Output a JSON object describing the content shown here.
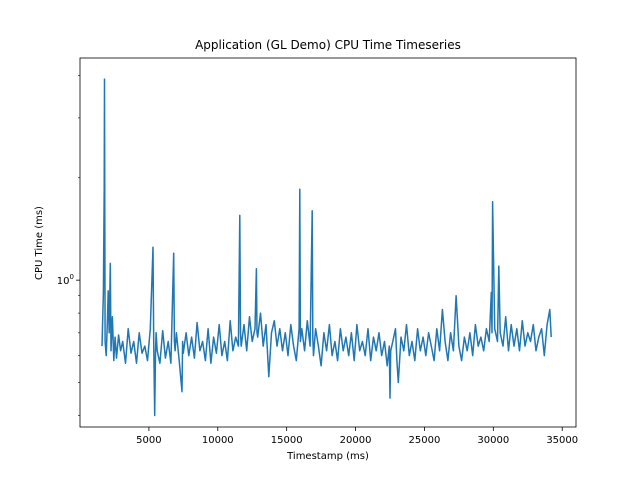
{
  "chart_data": {
    "type": "line",
    "title": "Application (GL Demo) CPU Time Timeseries",
    "xlabel": "Timestamp (ms)",
    "ylabel": "CPU Time (ms)",
    "xlim": [
      0,
      36000
    ],
    "ylim": [
      0.37,
      4.5
    ],
    "yscale": "log",
    "grid": false,
    "x_ticks": [
      {
        "value": 5000,
        "label": "5000"
      },
      {
        "value": 10000,
        "label": "10000"
      },
      {
        "value": 15000,
        "label": "15000"
      },
      {
        "value": 20000,
        "label": "20000"
      },
      {
        "value": 25000,
        "label": "25000"
      },
      {
        "value": 30000,
        "label": "30000"
      },
      {
        "value": 35000,
        "label": "35000"
      }
    ],
    "y_ticks": [
      {
        "value": 1,
        "base": "10",
        "exponent": "0"
      }
    ],
    "series": [
      {
        "color": "#1f77b4",
        "x": [
          1600,
          1700,
          1760,
          1780,
          1820,
          1900,
          1980,
          2050,
          2120,
          2200,
          2250,
          2350,
          2450,
          2550,
          2650,
          2800,
          2950,
          3100,
          3300,
          3500,
          3700,
          3900,
          4100,
          4300,
          4500,
          4700,
          4900,
          5100,
          5300,
          5350,
          5420,
          5480,
          5520,
          5600,
          5800,
          6000,
          6200,
          6400,
          6600,
          6800,
          6850,
          6900,
          7000,
          7200,
          7400,
          7450,
          7500,
          7700,
          7900,
          8100,
          8300,
          8500,
          8700,
          8900,
          9100,
          9300,
          9500,
          9700,
          9900,
          10100,
          10300,
          10500,
          10700,
          10900,
          11100,
          11300,
          11500,
          11600,
          11650,
          11700,
          11900,
          12100,
          12300,
          12500,
          12700,
          12800,
          12850,
          12900,
          13100,
          13300,
          13500,
          13700,
          13900,
          14100,
          14300,
          14500,
          14700,
          14900,
          15100,
          15300,
          15500,
          15700,
          15900,
          15950,
          16000,
          16100,
          16300,
          16500,
          16700,
          16850,
          16900,
          16950,
          17100,
          17300,
          17500,
          17700,
          17900,
          18100,
          18300,
          18500,
          18700,
          18900,
          19100,
          19300,
          19500,
          19700,
          19900,
          20100,
          20300,
          20500,
          20700,
          20900,
          21100,
          21300,
          21500,
          21700,
          21900,
          22100,
          22300,
          22450,
          22500,
          22550,
          22700,
          22900,
          23000,
          23100,
          23300,
          23500,
          23700,
          23900,
          24100,
          24300,
          24500,
          24700,
          24900,
          25100,
          25300,
          25500,
          25700,
          25900,
          26100,
          26300,
          26500,
          26700,
          26900,
          27100,
          27300,
          27500,
          27700,
          27900,
          28100,
          28300,
          28500,
          28700,
          28900,
          29100,
          29300,
          29500,
          29700,
          29850,
          29900,
          29950,
          30100,
          30300,
          30400,
          30500,
          30700,
          30900,
          31100,
          31300,
          31500,
          31700,
          31900,
          32100,
          32300,
          32500,
          32700,
          32900,
          33100,
          33300,
          33500,
          33700,
          33900,
          34100,
          34200
        ],
        "y": [
          0.64,
          0.92,
          1.85,
          3.9,
          0.66,
          0.6,
          0.74,
          0.93,
          0.7,
          1.12,
          0.62,
          0.78,
          0.58,
          0.68,
          0.59,
          0.69,
          0.62,
          0.66,
          0.57,
          0.72,
          0.61,
          0.66,
          0.57,
          0.7,
          0.61,
          0.64,
          0.58,
          0.72,
          1.25,
          0.66,
          0.4,
          0.61,
          0.7,
          0.62,
          0.57,
          0.71,
          0.59,
          0.66,
          0.57,
          1.2,
          0.66,
          0.62,
          0.7,
          0.58,
          0.47,
          0.66,
          0.61,
          0.7,
          0.6,
          0.68,
          0.59,
          0.75,
          0.62,
          0.66,
          0.58,
          0.72,
          0.57,
          0.68,
          0.61,
          0.74,
          0.6,
          0.66,
          0.58,
          0.76,
          0.62,
          0.68,
          0.64,
          1.55,
          0.7,
          0.64,
          0.74,
          0.62,
          0.78,
          0.66,
          0.72,
          1.08,
          0.7,
          0.68,
          0.8,
          0.64,
          0.74,
          0.52,
          0.7,
          0.76,
          0.64,
          0.72,
          0.62,
          0.7,
          0.6,
          0.74,
          0.64,
          0.58,
          0.72,
          1.85,
          0.66,
          0.72,
          0.62,
          0.76,
          0.64,
          1.6,
          0.68,
          0.6,
          0.72,
          0.64,
          0.56,
          0.7,
          0.62,
          0.74,
          0.6,
          0.66,
          0.58,
          0.72,
          0.62,
          0.68,
          0.6,
          0.7,
          0.58,
          0.74,
          0.62,
          0.66,
          0.6,
          0.72,
          0.58,
          0.68,
          0.62,
          0.7,
          0.6,
          0.66,
          0.56,
          0.64,
          0.45,
          0.62,
          0.66,
          0.72,
          0.58,
          0.5,
          0.68,
          0.62,
          0.74,
          0.6,
          0.66,
          0.58,
          0.72,
          0.62,
          0.68,
          0.6,
          0.7,
          0.64,
          0.58,
          0.72,
          0.62,
          0.82,
          0.66,
          0.58,
          0.7,
          0.62,
          0.9,
          0.64,
          0.58,
          0.68,
          0.62,
          0.7,
          0.6,
          0.74,
          0.64,
          0.68,
          0.62,
          0.72,
          0.66,
          0.92,
          0.7,
          1.7,
          0.72,
          0.66,
          1.1,
          0.7,
          0.64,
          0.78,
          0.62,
          0.74,
          0.64,
          0.72,
          0.62,
          0.76,
          0.64,
          0.7,
          0.66,
          0.74,
          0.62,
          0.68,
          0.72,
          0.6,
          0.74,
          0.82,
          0.68
        ]
      }
    ]
  }
}
